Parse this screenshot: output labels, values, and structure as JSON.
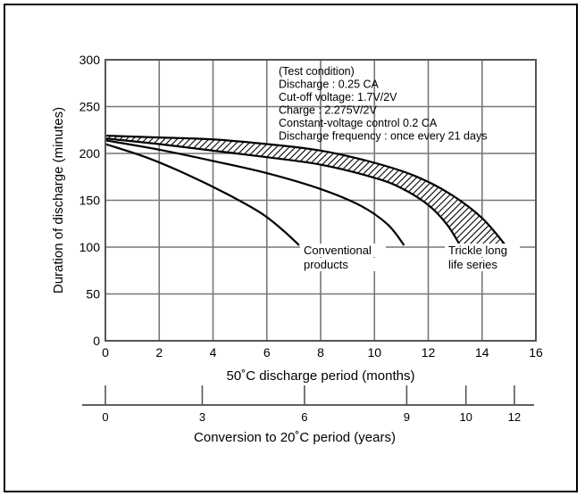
{
  "chart_data": {
    "type": "line",
    "xlabel": "50˚C discharge period (months)",
    "ylabel": "Duration of discharge (minutes)",
    "xlim": [
      0,
      16
    ],
    "ylim": [
      0,
      300
    ],
    "x_ticks": [
      "0",
      "2",
      "4",
      "6",
      "8",
      "10",
      "12",
      "14",
      "16"
    ],
    "y_ticks": [
      "0",
      "50",
      "100",
      "150",
      "200",
      "250",
      "300"
    ],
    "grid": true,
    "series": [
      {
        "name": "Conventional products",
        "style": "solid",
        "x": [
          0,
          1.5,
          3,
          4.5,
          5.8,
          6.6,
          7.2
        ],
        "y": [
          210,
          196,
          178,
          157,
          136,
          118,
          102
        ]
      },
      {
        "name": "Conventional products",
        "style": "solid",
        "x": [
          0,
          2,
          4,
          6,
          8,
          9.5,
          10.5,
          11.1
        ],
        "y": [
          214,
          204,
          192,
          179,
          162,
          144,
          124,
          102
        ]
      },
      {
        "name": "Trickle long life series",
        "style": "band-upper",
        "x": [
          0,
          2,
          4,
          6,
          8,
          10,
          11.5,
          12.8,
          14,
          14.9
        ],
        "y": [
          219,
          217,
          215,
          210,
          203,
          190,
          176,
          157,
          131,
          101
        ]
      },
      {
        "name": "Trickle long life series",
        "style": "band-lower",
        "x": [
          0,
          2,
          4,
          6,
          8,
          10,
          11,
          12,
          12.7,
          13.2
        ],
        "y": [
          216,
          210,
          203,
          196,
          188,
          174,
          163,
          145,
          124,
          101
        ]
      }
    ],
    "labels": {
      "conventional": [
        "Conventional",
        "products"
      ],
      "trickle": [
        "Trickle long",
        "life series"
      ]
    },
    "test_condition": [
      "(Test condition)",
      "Discharge : 0.25 CA",
      "Cut-off voltage: 1.7V/2V",
      "Charge : 2.275V/2V",
      "Constant-voltage control 0.2 CA",
      "Discharge frequency : once every 21 days"
    ],
    "conversion_axis": {
      "label": "Conversion to 20˚C period (years)",
      "ticks": [
        {
          "label": "0",
          "months": 0
        },
        {
          "label": "3",
          "months": 3.6
        },
        {
          "label": "6",
          "months": 7.4
        },
        {
          "label": "9",
          "months": 11.2
        },
        {
          "label": "10",
          "months": 13.4
        },
        {
          "label": "12",
          "months": 15.2
        }
      ]
    }
  }
}
